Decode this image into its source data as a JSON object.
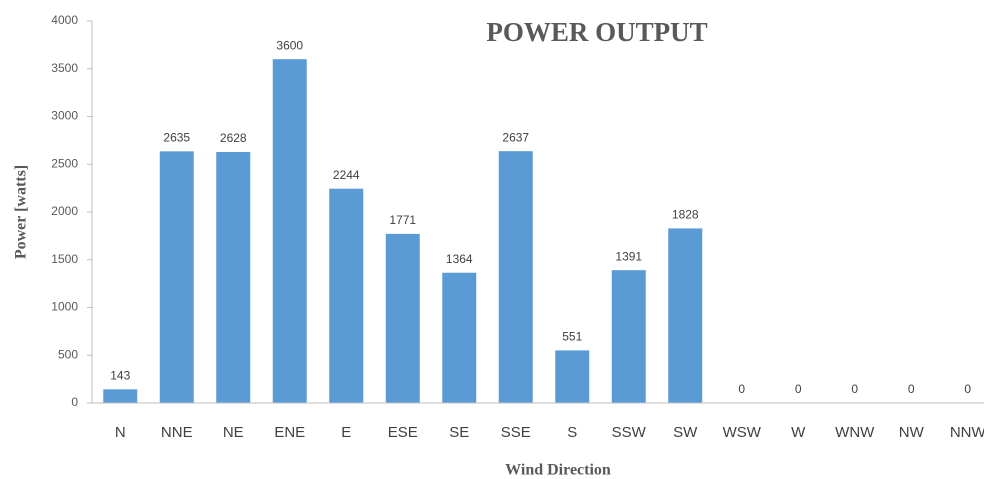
{
  "chart_data": {
    "type": "bar",
    "title": "POWER OUTPUT",
    "x_label": "Wind Direction",
    "y_label": "Power [watts]",
    "categories": [
      "N",
      "NNE",
      "NE",
      "ENE",
      "E",
      "ESE",
      "SE",
      "SSE",
      "S",
      "SSW",
      "SW",
      "WSW",
      "W",
      "WNW",
      "NW",
      "NNW"
    ],
    "values": [
      143,
      2635,
      2628,
      3600,
      2244,
      1771,
      1364,
      2637,
      551,
      1391,
      1828,
      0,
      0,
      0,
      0,
      0
    ],
    "color": "#5b9bd5",
    "ylim": [
      0,
      4000
    ],
    "yticks": [
      0,
      500,
      1000,
      1500,
      2000,
      2500,
      3000,
      3500,
      4000
    ],
    "grid": false
  }
}
